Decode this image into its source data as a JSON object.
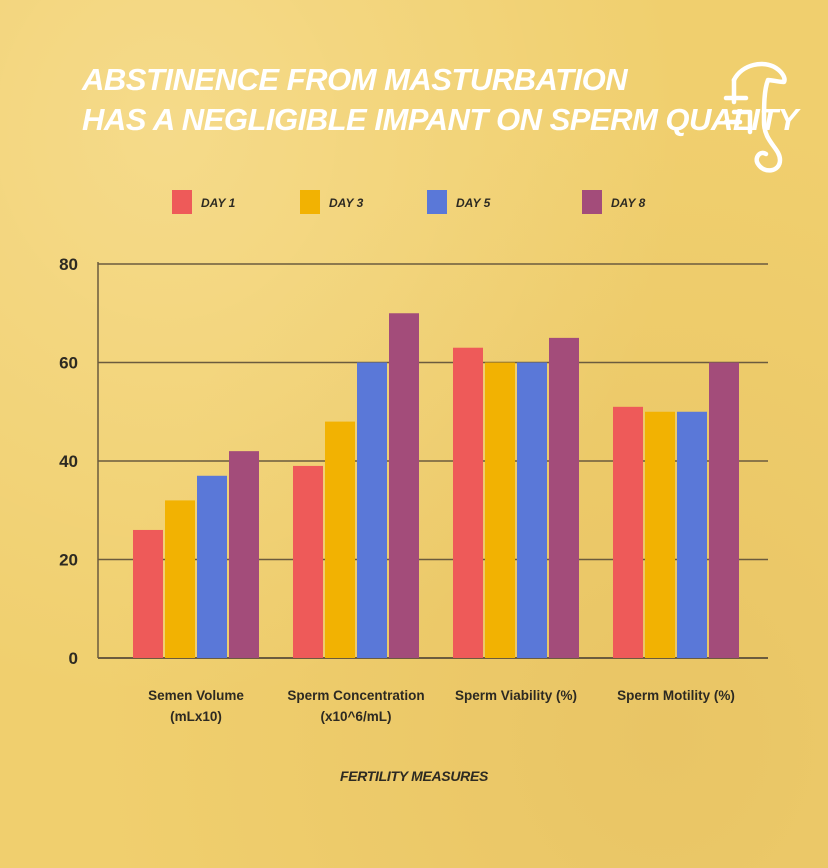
{
  "title": {
    "line1": "ABSTINENCE FROM MASTURBATION",
    "line2": "HAS A NEGLIGIBLE IMPANT ON SPERM QUALITY"
  },
  "logo": {
    "icon": "seahorse-logo-icon",
    "color": "#ffffff"
  },
  "colors": {
    "background": "#f0cf6e",
    "grid": "#6b5b3e",
    "text": "#2d2a22"
  },
  "chart_data": {
    "type": "bar",
    "xlabel": "FERTILITY MEASURES",
    "ylabel": "",
    "ylim": [
      0,
      80
    ],
    "yticks": [
      0,
      20,
      40,
      60,
      80
    ],
    "grid": true,
    "legend_position": "top",
    "categories": [
      [
        "Semen Volume",
        "(mLx10)"
      ],
      [
        "Sperm Concentration",
        "(x10^6/mL)"
      ],
      [
        "Sperm Viability (%)"
      ],
      [
        "Sperm Motility (%)"
      ]
    ],
    "series": [
      {
        "name": "DAY 1",
        "color": "#ee5a59",
        "values": [
          26,
          39,
          63,
          51
        ]
      },
      {
        "name": "DAY 3",
        "color": "#f2b202",
        "values": [
          32,
          48,
          60,
          50
        ]
      },
      {
        "name": "DAY 5",
        "color": "#5a78d8",
        "values": [
          37,
          60,
          60,
          50
        ]
      },
      {
        "name": "DAY 8",
        "color": "#a34c7a",
        "values": [
          42,
          70,
          65,
          60
        ]
      }
    ]
  }
}
